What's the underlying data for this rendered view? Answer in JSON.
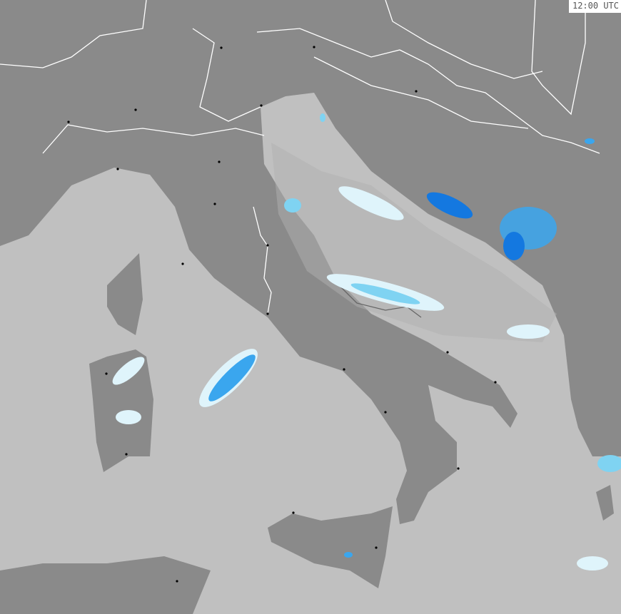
{
  "map": {
    "timestamp": "12:00 UTC",
    "colors": {
      "sea": "#c0c0c0",
      "land": "#8a8a8a",
      "borders": "#ffffff",
      "precip_light": "#dff4fb",
      "precip_medium": "#7fd3f2",
      "precip_heavy": "#3aa6ee",
      "precip_strong": "#1478e0"
    }
  }
}
